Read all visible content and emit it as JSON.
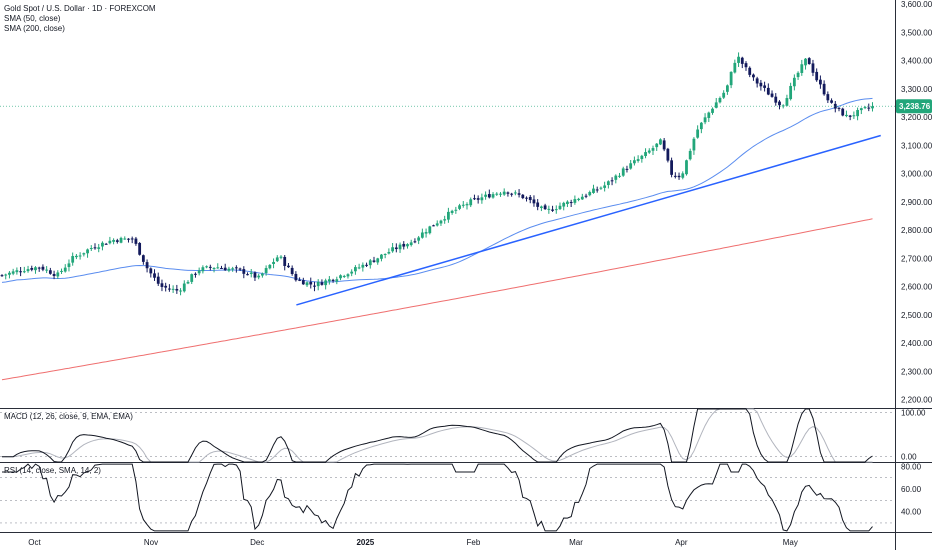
{
  "chart_data": {
    "type": "candlestick",
    "title": "Gold Spot / U.S. Dollar · 1D · FOREXCOM",
    "last_price_label": "3,238.76",
    "colors": {
      "up": "#22a67a",
      "down": "#131a5c",
      "sma50": "#5b8def",
      "sma200": "#ef6f6f",
      "trendline": "#2962ff",
      "macd": "#131722",
      "macd_signal": "#b2b5be",
      "rsi": "#131722",
      "price_badge": "#22a67a"
    },
    "overlays": [
      "SMA (50, close)",
      "SMA (200, close)"
    ],
    "price_axis": {
      "ticks": [
        "3,600.00",
        "3,500.00",
        "3,400.00",
        "3,300.00",
        "3,200.00",
        "3,100.00",
        "3,000.00",
        "2,900.00",
        "2,800.00",
        "2,700.00",
        "2,600.00",
        "2,500.00",
        "2,400.00",
        "2,300.00",
        "2,200.00"
      ],
      "range": [
        2170,
        3615
      ]
    },
    "x_axis_labels": [
      "Oct",
      "Nov",
      "Dec",
      "2025",
      "Feb",
      "Mar",
      "Apr",
      "May"
    ],
    "trendline": {
      "from": [
        0.318,
        2535
      ],
      "to": [
        0.945,
        3135
      ]
    },
    "macd": {
      "label": "MACD (12, 26, close, 9, EMA, EMA)",
      "ticks": [
        "100.00",
        "0.00"
      ],
      "range": [
        -12,
        108
      ]
    },
    "rsi": {
      "label": "RSI (14, close, SMA, 14, 2)",
      "ticks": [
        "80.00",
        "60.00",
        "40.00"
      ],
      "bands": [
        70,
        50,
        30
      ],
      "range": [
        22,
        83
      ]
    }
  }
}
